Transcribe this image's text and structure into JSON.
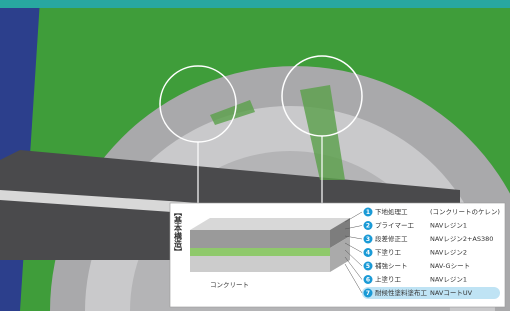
{
  "structure_label": "【基本構造】",
  "base_label": "コンクリート",
  "layers": [
    {
      "number": 1,
      "name": "下地処理工",
      "material": "(コンクリートのケレン)"
    },
    {
      "number": 2,
      "name": "プライマー工",
      "material": "NAVレジン1"
    },
    {
      "number": 3,
      "name": "段差修正工",
      "material": "NAVレジン2+AS380"
    },
    {
      "number": 4,
      "name": "下塗り工",
      "material": "NAVレジン2"
    },
    {
      "number": 5,
      "name": "補強シート",
      "material": "NAV-Gシート"
    },
    {
      "number": 6,
      "name": "上塗り工",
      "material": "NAVレジン1"
    },
    {
      "number": 7,
      "name": "耐候性塗料塗布工",
      "material": "NAVコートUV"
    }
  ]
}
